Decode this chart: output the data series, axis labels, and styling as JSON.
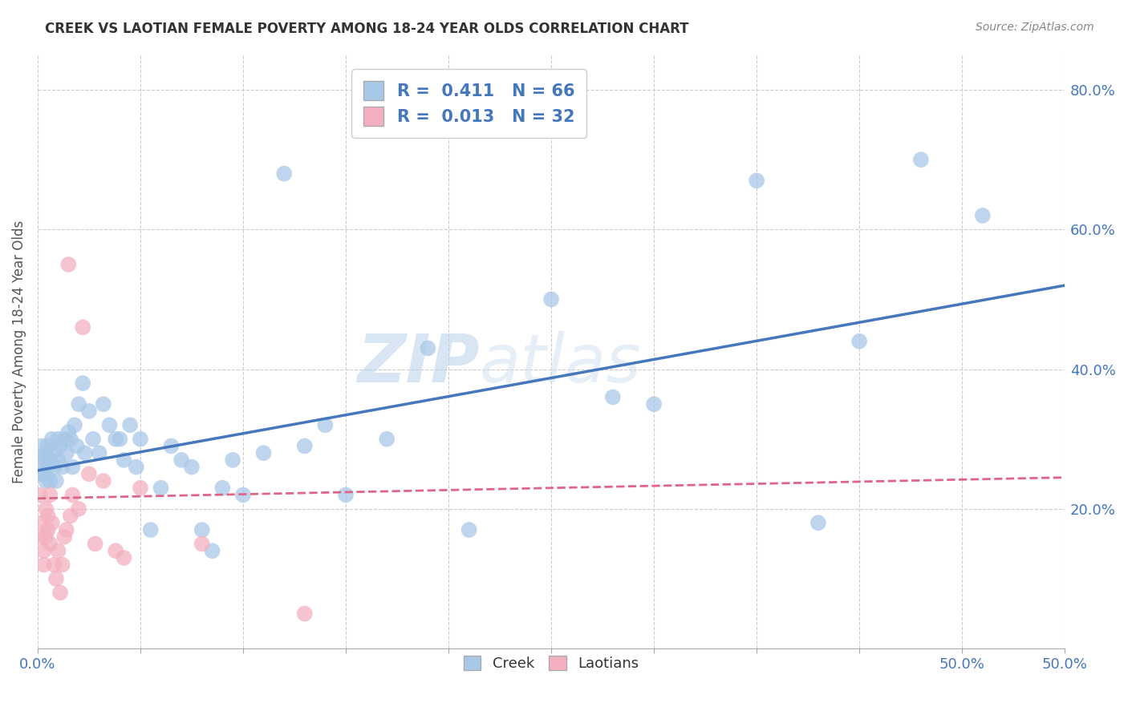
{
  "title": "CREEK VS LAOTIAN FEMALE POVERTY AMONG 18-24 YEAR OLDS CORRELATION CHART",
  "source": "Source: ZipAtlas.com",
  "ylabel_label": "Female Poverty Among 18-24 Year Olds",
  "xlim": [
    0.0,
    0.5
  ],
  "ylim": [
    0.0,
    0.85
  ],
  "xticks": [
    0.0,
    0.05,
    0.1,
    0.15,
    0.2,
    0.25,
    0.3,
    0.35,
    0.4,
    0.45,
    0.5
  ],
  "xtick_labels_shown": {
    "0.0": "0.0%",
    "0.5": "50.0%"
  },
  "yticks_right": [
    0.2,
    0.4,
    0.6,
    0.8
  ],
  "ytick_right_labels": [
    "20.0%",
    "40.0%",
    "60.0%",
    "80.0%"
  ],
  "creek_color": "#a8c8e8",
  "laotian_color": "#f4b0c0",
  "creek_line_color": "#4477bb",
  "laotian_line_color": "#dd6688",
  "creek_R": 0.411,
  "creek_N": 66,
  "laotian_R": 0.013,
  "laotian_N": 32,
  "watermark": "ZIPatlas",
  "background_color": "#ffffff",
  "grid_color": "#cccccc",
  "axis_color": "#4477bb",
  "title_color": "#333333",
  "creek_x": [
    0.001,
    0.002,
    0.002,
    0.003,
    0.003,
    0.004,
    0.004,
    0.005,
    0.005,
    0.006,
    0.006,
    0.007,
    0.008,
    0.008,
    0.009,
    0.01,
    0.01,
    0.011,
    0.012,
    0.013,
    0.014,
    0.015,
    0.016,
    0.017,
    0.018,
    0.019,
    0.02,
    0.022,
    0.023,
    0.025,
    0.027,
    0.03,
    0.032,
    0.035,
    0.038,
    0.04,
    0.042,
    0.045,
    0.048,
    0.05,
    0.055,
    0.06,
    0.065,
    0.07,
    0.075,
    0.08,
    0.085,
    0.09,
    0.095,
    0.1,
    0.11,
    0.12,
    0.13,
    0.14,
    0.15,
    0.17,
    0.19,
    0.21,
    0.25,
    0.28,
    0.3,
    0.35,
    0.38,
    0.4,
    0.43,
    0.46
  ],
  "creek_y": [
    0.27,
    0.29,
    0.25,
    0.27,
    0.25,
    0.28,
    0.24,
    0.26,
    0.29,
    0.27,
    0.24,
    0.3,
    0.28,
    0.26,
    0.24,
    0.3,
    0.27,
    0.29,
    0.26,
    0.3,
    0.28,
    0.31,
    0.3,
    0.26,
    0.32,
    0.29,
    0.35,
    0.38,
    0.28,
    0.34,
    0.3,
    0.28,
    0.35,
    0.32,
    0.3,
    0.3,
    0.27,
    0.32,
    0.26,
    0.3,
    0.17,
    0.23,
    0.29,
    0.27,
    0.26,
    0.17,
    0.14,
    0.23,
    0.27,
    0.22,
    0.28,
    0.68,
    0.29,
    0.32,
    0.22,
    0.3,
    0.43,
    0.17,
    0.5,
    0.36,
    0.35,
    0.67,
    0.18,
    0.44,
    0.7,
    0.62
  ],
  "laotian_x": [
    0.001,
    0.002,
    0.002,
    0.003,
    0.003,
    0.004,
    0.004,
    0.005,
    0.005,
    0.006,
    0.006,
    0.007,
    0.008,
    0.009,
    0.01,
    0.011,
    0.012,
    0.013,
    0.014,
    0.015,
    0.016,
    0.017,
    0.02,
    0.022,
    0.025,
    0.028,
    0.032,
    0.038,
    0.042,
    0.05,
    0.08,
    0.13
  ],
  "laotian_y": [
    0.22,
    0.18,
    0.16,
    0.14,
    0.12,
    0.16,
    0.2,
    0.19,
    0.17,
    0.15,
    0.22,
    0.18,
    0.12,
    0.1,
    0.14,
    0.08,
    0.12,
    0.16,
    0.17,
    0.55,
    0.19,
    0.22,
    0.2,
    0.46,
    0.25,
    0.15,
    0.24,
    0.14,
    0.13,
    0.23,
    0.15,
    0.05
  ]
}
